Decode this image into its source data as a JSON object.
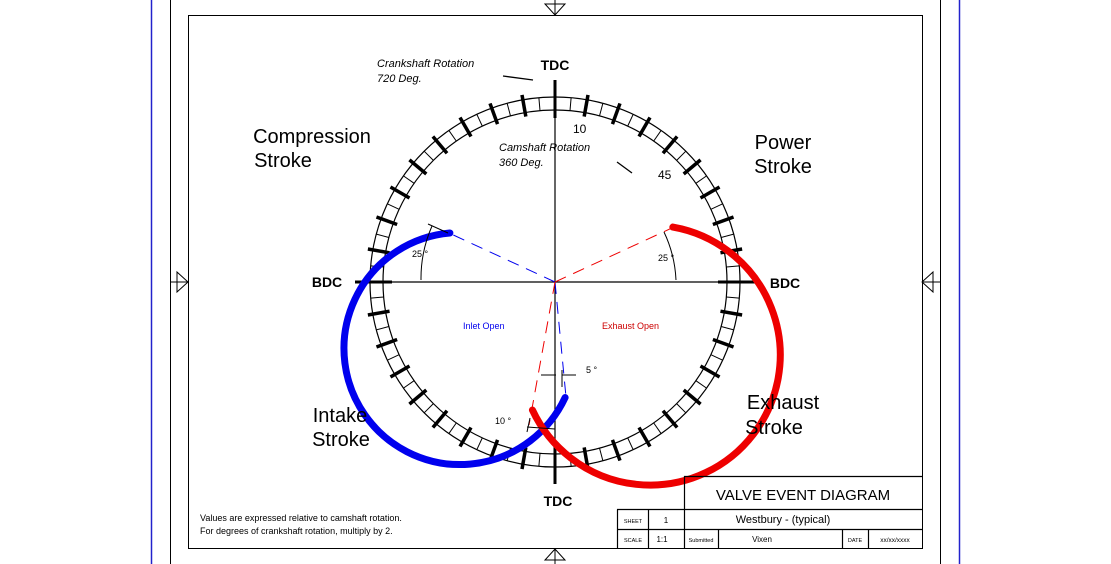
{
  "labels": {
    "tdc_top": "TDC",
    "tdc_bottom": "TDC",
    "bdc_left": "BDC",
    "bdc_right": "BDC",
    "crankshaft_line1": "Crankshaft Rotation",
    "crankshaft_line2": "720 Deg.",
    "camshaft_line1": "Camshaft Rotation",
    "camshaft_line2": "360 Deg.",
    "tick_10": "10",
    "tick_45": "45",
    "compression_line1": "Compression",
    "compression_line2": "Stroke",
    "power_line1": "Power",
    "power_line2": "Stroke",
    "intake_line1": "Intake",
    "intake_line2": "Stroke",
    "exhaust_line1": "Exhaust",
    "exhaust_line2": "Stroke",
    "inlet_open": "Inlet Open",
    "exhaust_open": "Exhaust Open",
    "angle_inlet_open": "25 °",
    "angle_exhaust_open": "25 °",
    "angle_inlet_close": "5 °",
    "angle_exhaust_close": "10 °",
    "note_line1": "Values are expressed relative to camshaft rotation.",
    "note_line2": "For degrees of crankshaft rotation, multiply by 2."
  },
  "title_block": {
    "title": "VALVE EVENT DIAGRAM",
    "subtitle": "Westbury - (typical)",
    "sheet_label": "SHEET",
    "sheet_value": "1",
    "scale_label": "SCALE",
    "scale_value": "1:1",
    "submitted_label": "Submitted",
    "submitted_value": "Vixen",
    "date_label": "DATE",
    "date_value": "xx/xx/xxxx"
  },
  "colors": {
    "inlet": "#0000ee",
    "exhaust": "#ee0000",
    "frame": "#2222cc",
    "line": "#000000"
  }
}
